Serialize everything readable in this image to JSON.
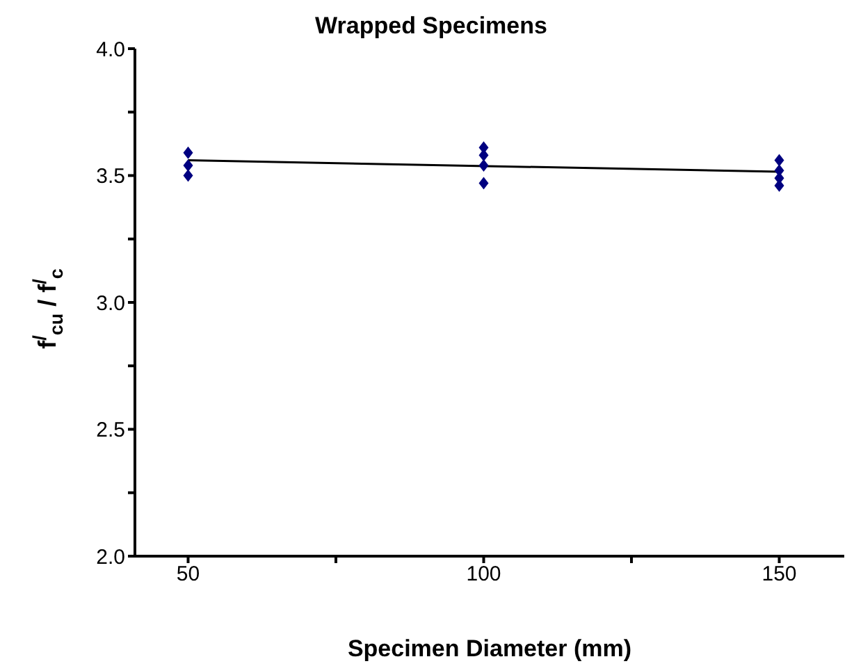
{
  "chart_data": {
    "type": "scatter",
    "title": "Wrapped Specimens",
    "xlabel": "Specimen Diameter (mm)",
    "ylabel": "f$^{/}$$_{cu}$ / f$^{/}$$_{c}$",
    "series": [
      {
        "color": "#000080",
        "marker": "diamond",
        "x": [
          50,
          50,
          50,
          100,
          100,
          100,
          100,
          150,
          150,
          150,
          150
        ],
        "values": [
          3.59,
          3.54,
          3.5,
          3.61,
          3.58,
          3.54,
          3.47,
          3.56,
          3.52,
          3.49,
          3.46
        ]
      },
      {
        "type": "line",
        "color": "#000000",
        "marker": "none",
        "line_style": "solid",
        "x": [
          50,
          150
        ],
        "values": [
          3.56,
          3.515
        ]
      }
    ],
    "xlim": [
      41,
      161
    ],
    "xticks": [
      50,
      {
        "value": 75,
        "label": null
      },
      100,
      {
        "value": 125,
        "label": null
      },
      150
    ],
    "ylim": [
      2.0,
      4.0
    ],
    "yticks": [
      {
        "value": 2.0,
        "label": "2.0"
      },
      {
        "value": 2.25,
        "label": null
      },
      {
        "value": 2.5,
        "label": "2.5"
      },
      {
        "value": 2.75,
        "label": null
      },
      {
        "value": 3.0,
        "label": "3.0"
      },
      {
        "value": 3.25,
        "label": null
      },
      {
        "value": 3.5,
        "label": "3.5"
      },
      {
        "value": 3.75,
        "label": null
      },
      {
        "value": 4.0,
        "label": "4.0"
      }
    ],
    "grid": false
  }
}
